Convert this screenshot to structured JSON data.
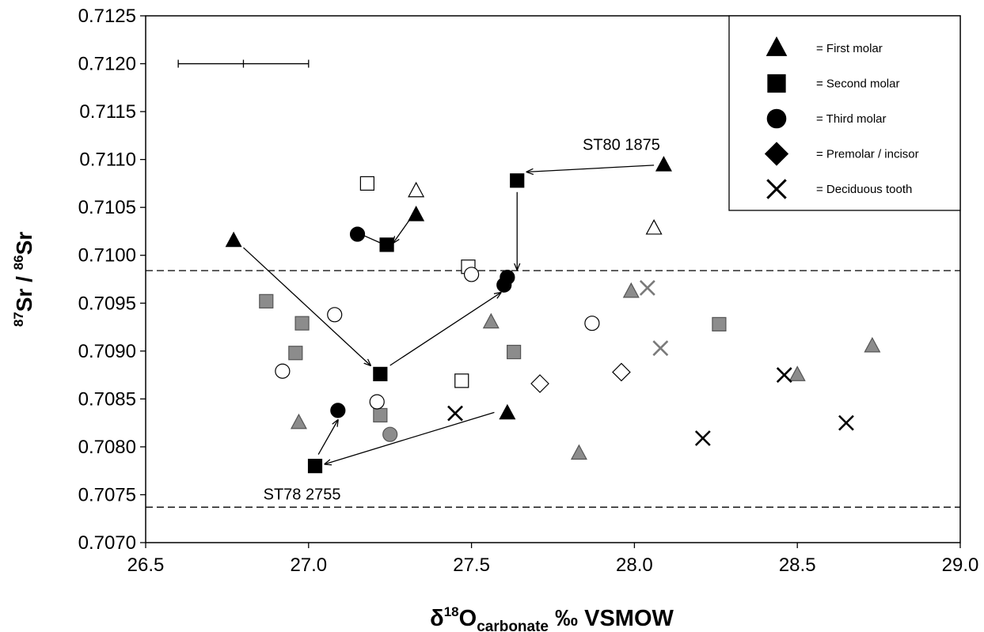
{
  "chart_data": {
    "type": "scatter",
    "title": "",
    "xlabel": {
      "base": "δ",
      "sup": "18",
      "main": "O",
      "sub": "carbonate",
      "tail": " ‰ VSMOW"
    },
    "ylabel": {
      "sup1": "87",
      "part1": "Sr / ",
      "sup2": "86",
      "part2": "Sr"
    },
    "xlim": [
      26.5,
      29.0
    ],
    "ylim": [
      0.707,
      0.7125
    ],
    "x_ticks": [
      "26.5",
      "27.0",
      "27.5",
      "28.0",
      "28.5",
      "29.0"
    ],
    "y_ticks": [
      "0.7070",
      "0.7075",
      "0.7080",
      "0.7085",
      "0.7090",
      "0.7095",
      "0.7100",
      "0.7105",
      "0.7110",
      "0.7115",
      "0.7120",
      "0.7125"
    ],
    "grid": false,
    "legend_position": "top-right",
    "legend": [
      {
        "symbol": "triangle",
        "label": "= First molar"
      },
      {
        "symbol": "square",
        "label": "= Second molar"
      },
      {
        "symbol": "circle",
        "label": "= Third molar"
      },
      {
        "symbol": "diamond",
        "label": "= Premolar / incisor"
      },
      {
        "symbol": "cross",
        "label": "= Deciduous tooth"
      }
    ],
    "colors": {
      "black": "#000000",
      "grey": "#8c8c8c",
      "open": "#ffffff",
      "cross_grey": "#7a7a7a"
    },
    "reference_lines": [
      0.70984,
      0.70737
    ],
    "error_bar": {
      "x_center": 26.8,
      "x_min": 26.6,
      "x_max": 27.0,
      "y": 0.712
    },
    "points": [
      {
        "shape": "triangle",
        "fill": "black",
        "x": 26.77,
        "y": 0.71015
      },
      {
        "shape": "triangle",
        "fill": "black",
        "x": 27.33,
        "y": 0.71042
      },
      {
        "shape": "triangle",
        "fill": "black",
        "x": 28.09,
        "y": 0.71094
      },
      {
        "shape": "triangle",
        "fill": "black",
        "x": 27.61,
        "y": 0.70835
      },
      {
        "shape": "triangle",
        "fill": "open",
        "x": 27.33,
        "y": 0.71067
      },
      {
        "shape": "triangle",
        "fill": "open",
        "x": 28.06,
        "y": 0.71028
      },
      {
        "shape": "triangle",
        "fill": "grey",
        "x": 26.97,
        "y": 0.70825
      },
      {
        "shape": "triangle",
        "fill": "grey",
        "x": 27.56,
        "y": 0.7093
      },
      {
        "shape": "triangle",
        "fill": "grey",
        "x": 27.99,
        "y": 0.70962
      },
      {
        "shape": "triangle",
        "fill": "grey",
        "x": 27.83,
        "y": 0.70793
      },
      {
        "shape": "triangle",
        "fill": "grey",
        "x": 28.5,
        "y": 0.70875
      },
      {
        "shape": "triangle",
        "fill": "grey",
        "x": 28.73,
        "y": 0.70905
      },
      {
        "shape": "square",
        "fill": "black",
        "x": 27.24,
        "y": 0.71011
      },
      {
        "shape": "square",
        "fill": "black",
        "x": 27.64,
        "y": 0.71078
      },
      {
        "shape": "square",
        "fill": "black",
        "x": 27.22,
        "y": 0.70876
      },
      {
        "shape": "square",
        "fill": "black",
        "x": 27.02,
        "y": 0.7078
      },
      {
        "shape": "square",
        "fill": "open",
        "x": 27.18,
        "y": 0.71075
      },
      {
        "shape": "square",
        "fill": "open",
        "x": 27.49,
        "y": 0.70988
      },
      {
        "shape": "square",
        "fill": "open",
        "x": 27.47,
        "y": 0.70869
      },
      {
        "shape": "square",
        "fill": "grey",
        "x": 26.87,
        "y": 0.70952
      },
      {
        "shape": "square",
        "fill": "grey",
        "x": 26.98,
        "y": 0.70929
      },
      {
        "shape": "square",
        "fill": "grey",
        "x": 26.96,
        "y": 0.70898
      },
      {
        "shape": "square",
        "fill": "grey",
        "x": 27.22,
        "y": 0.70833
      },
      {
        "shape": "square",
        "fill": "grey",
        "x": 27.63,
        "y": 0.70899
      },
      {
        "shape": "square",
        "fill": "grey",
        "x": 28.26,
        "y": 0.70928
      },
      {
        "shape": "circle",
        "fill": "black",
        "x": 27.15,
        "y": 0.71022
      },
      {
        "shape": "circle",
        "fill": "black",
        "x": 27.61,
        "y": 0.70977
      },
      {
        "shape": "circle",
        "fill": "black",
        "x": 27.6,
        "y": 0.70969
      },
      {
        "shape": "circle",
        "fill": "black",
        "x": 27.09,
        "y": 0.70838
      },
      {
        "shape": "circle",
        "fill": "open",
        "x": 27.5,
        "y": 0.7098
      },
      {
        "shape": "circle",
        "fill": "open",
        "x": 27.08,
        "y": 0.70938
      },
      {
        "shape": "circle",
        "fill": "open",
        "x": 26.92,
        "y": 0.70879
      },
      {
        "shape": "circle",
        "fill": "open",
        "x": 27.21,
        "y": 0.70847
      },
      {
        "shape": "circle",
        "fill": "open",
        "x": 27.87,
        "y": 0.70929
      },
      {
        "shape": "circle",
        "fill": "grey",
        "x": 27.25,
        "y": 0.70813
      },
      {
        "shape": "diamond",
        "fill": "open",
        "x": 27.71,
        "y": 0.70866
      },
      {
        "shape": "diamond",
        "fill": "open",
        "x": 27.96,
        "y": 0.70878
      },
      {
        "shape": "cross",
        "fill": "black",
        "x": 27.45,
        "y": 0.70835
      },
      {
        "shape": "cross",
        "fill": "black",
        "x": 28.21,
        "y": 0.70809
      },
      {
        "shape": "cross",
        "fill": "black",
        "x": 28.46,
        "y": 0.70875
      },
      {
        "shape": "cross",
        "fill": "black",
        "x": 28.65,
        "y": 0.70825
      },
      {
        "shape": "cross",
        "fill": "grey",
        "x": 28.04,
        "y": 0.70966
      },
      {
        "shape": "cross",
        "fill": "grey",
        "x": 28.08,
        "y": 0.70903
      }
    ],
    "arrows": [
      {
        "from": [
          28.06,
          0.71094
        ],
        "to": [
          27.67,
          0.71087
        ]
      },
      {
        "from": [
          27.64,
          0.71066
        ],
        "to": [
          27.64,
          0.70985
        ]
      },
      {
        "from": [
          26.8,
          0.71008
        ],
        "to": [
          27.19,
          0.70885
        ]
      },
      {
        "from": [
          27.25,
          0.70885
        ],
        "to": [
          27.59,
          0.70961
        ]
      },
      {
        "from": [
          27.57,
          0.70836
        ],
        "to": [
          27.05,
          0.70782
        ]
      },
      {
        "from": [
          27.03,
          0.70792
        ],
        "to": [
          27.09,
          0.70828
        ]
      },
      {
        "from": [
          27.31,
          0.71037
        ],
        "to": [
          27.26,
          0.71013
        ]
      }
    ],
    "connectors": [
      {
        "from": [
          27.16,
          0.71022
        ],
        "to": [
          27.22,
          0.71013
        ]
      }
    ],
    "annotations": [
      {
        "text": "ST80 1875",
        "x": 27.96,
        "y": 0.7111
      },
      {
        "text": "ST78 2755",
        "x": 26.98,
        "y": 0.70745
      }
    ]
  }
}
